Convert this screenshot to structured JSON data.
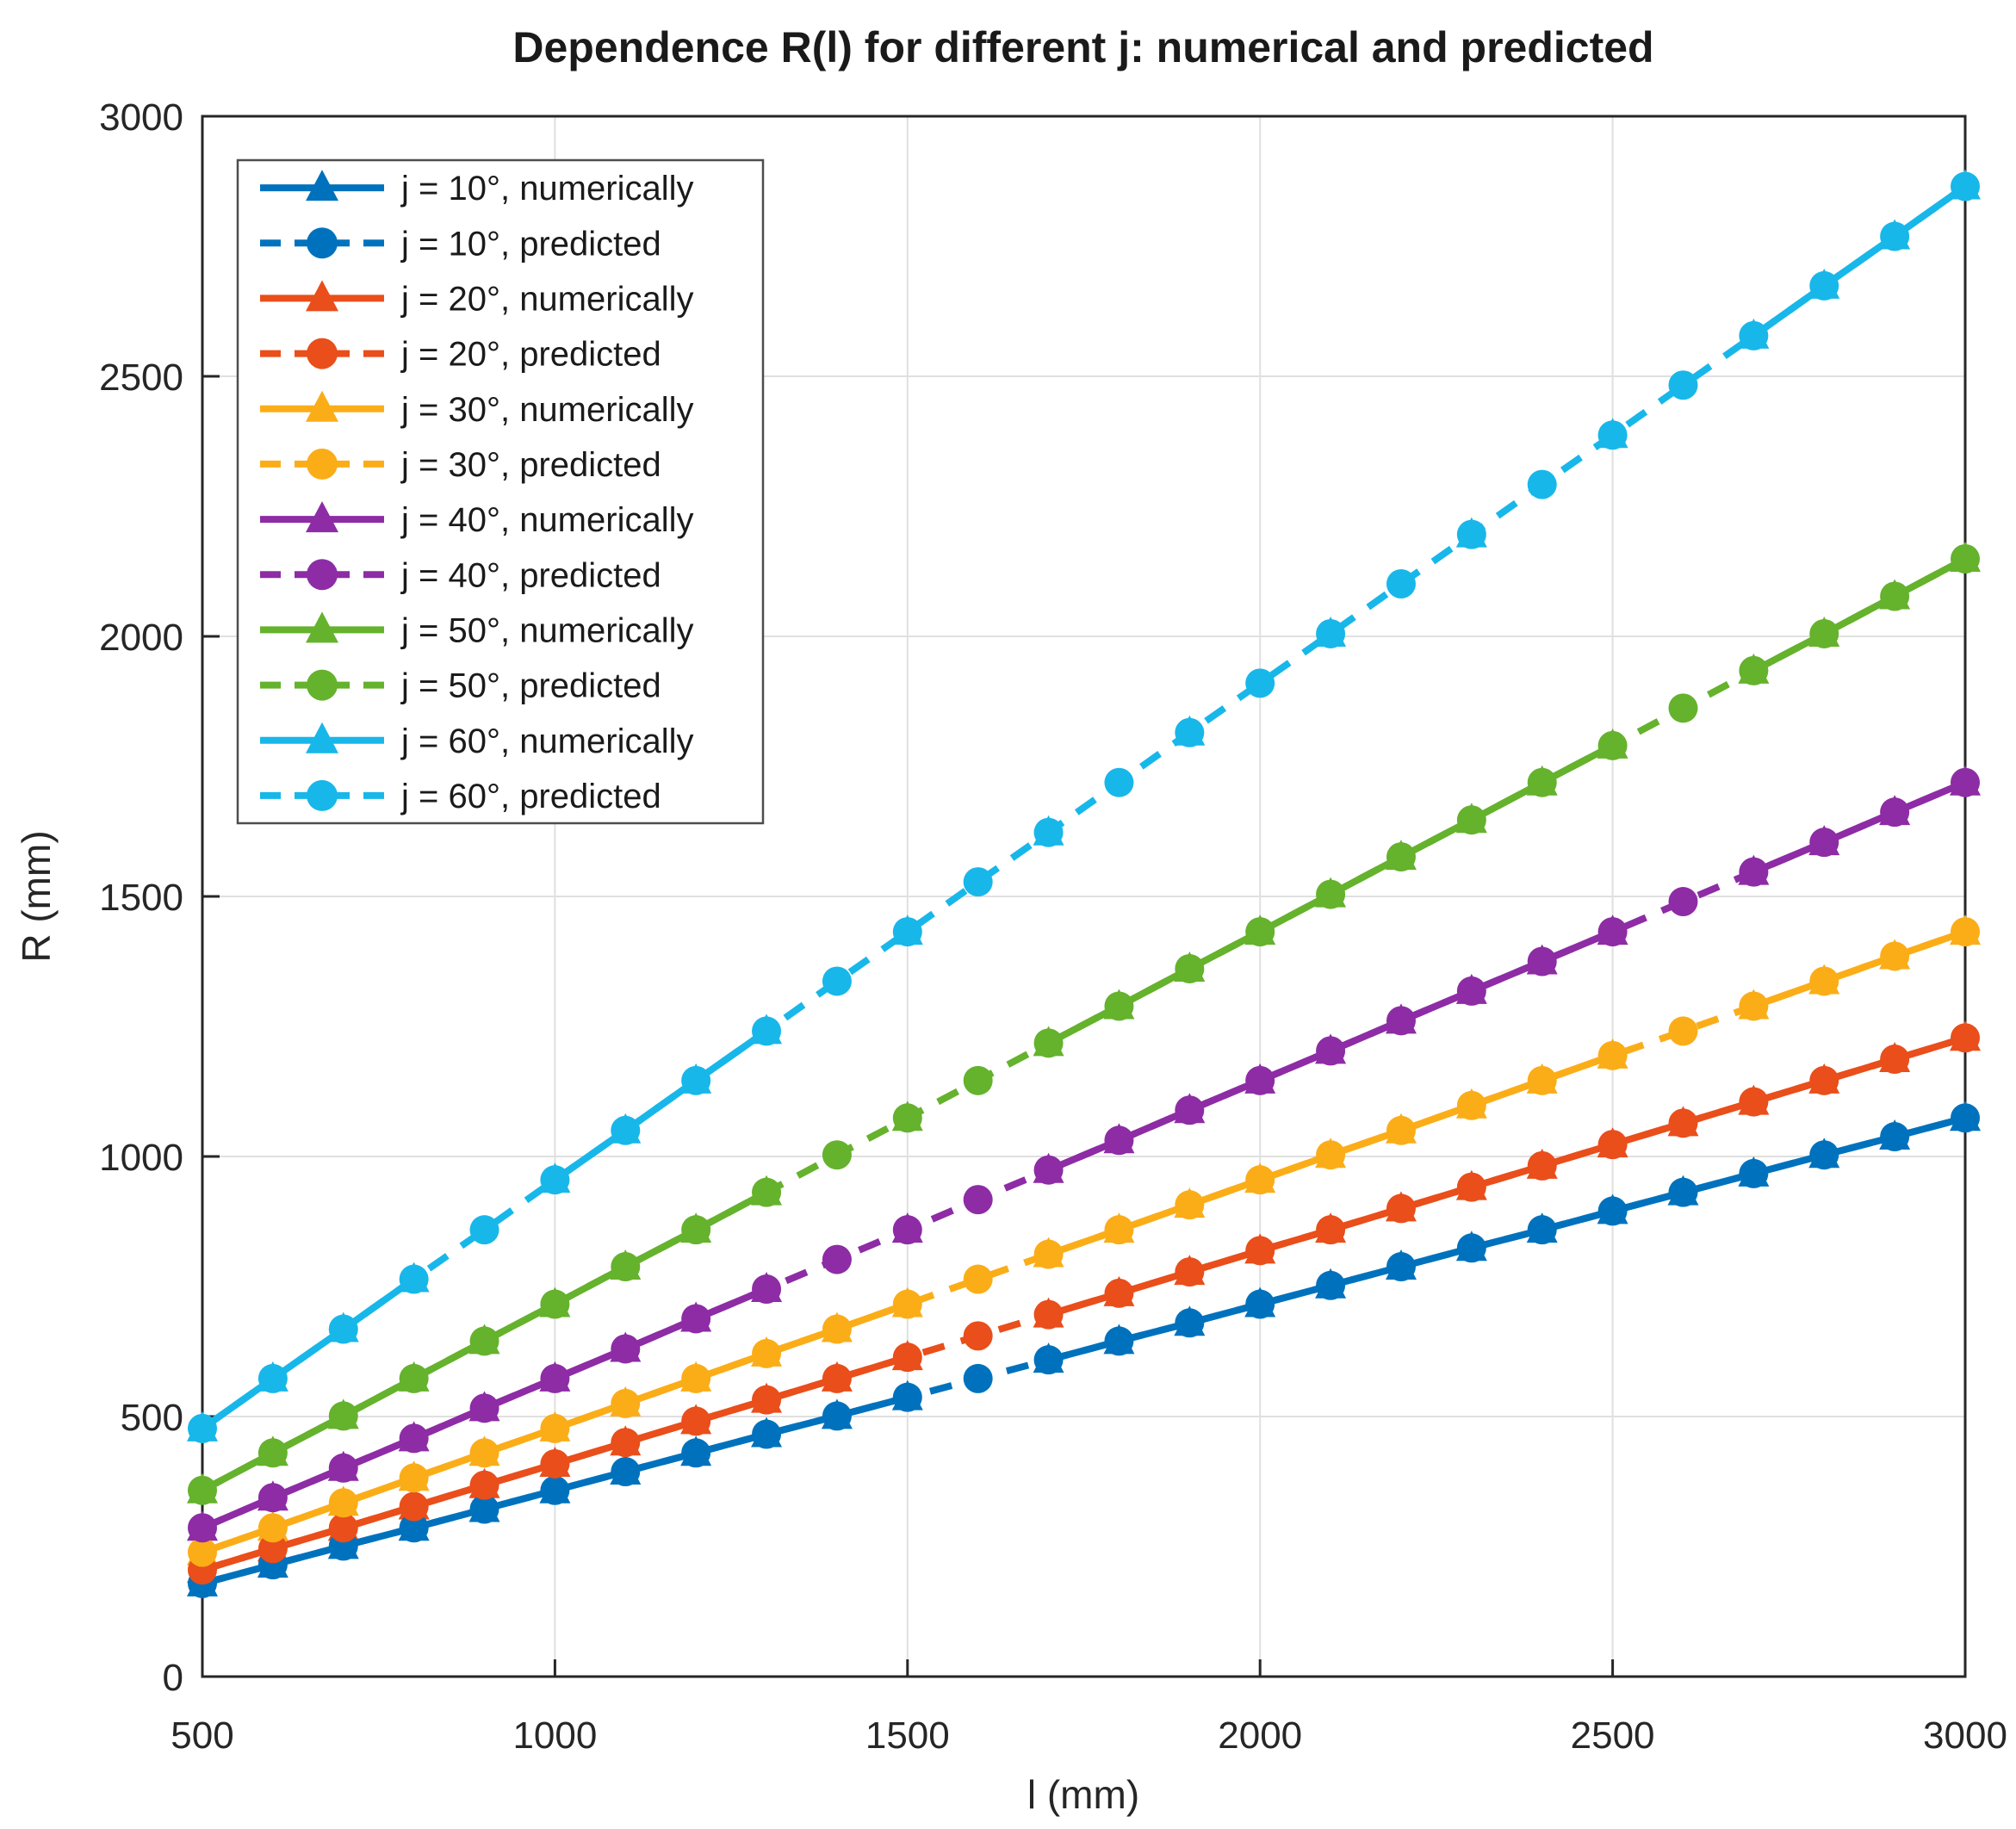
{
  "page": {
    "title": "Dependence R(l) for different j: numerical and predicted",
    "xlabel": "l (mm)",
    "ylabel": "R (mm)"
  },
  "chart_data": {
    "type": "line",
    "title": "Dependence R(l) for different j: numerical and predicted",
    "xlabel": "l (mm)",
    "ylabel": "R (mm)",
    "xlim": [
      500,
      3000
    ],
    "ylim": [
      0,
      3000
    ],
    "xticks": [
      500,
      1000,
      1500,
      2000,
      2500,
      3000
    ],
    "yticks": [
      0,
      500,
      1000,
      1500,
      2000,
      2500,
      3000
    ],
    "grid": true,
    "legend_position": "top-left",
    "axis_color": "#262626",
    "grid_color": "#e0e0e0",
    "legend_border_color": "#4d4d4d",
    "series": [
      {
        "label": "j = 10°, numerically",
        "j_deg": 10,
        "kind": "numerical",
        "color": "#0072BD",
        "line_style": "solid",
        "marker": "triangle",
        "x": [
          500,
          600,
          700,
          800,
          900,
          1000,
          1100,
          1200,
          1300,
          1400,
          1500,
          1700,
          1800,
          1900,
          2000,
          2100,
          2200,
          2300,
          2400,
          2500,
          2600,
          2700,
          2800,
          2900,
          3000
        ],
        "y": [
          179,
          215,
          251,
          286,
          322,
          358,
          394,
          430,
          466,
          501,
          537,
          609,
          645,
          680,
          716,
          752,
          788,
          824,
          859,
          895,
          931,
          967,
          1003,
          1038,
          1074
        ]
      },
      {
        "label": "j = 10°, predicted",
        "j_deg": 10,
        "kind": "predicted",
        "color": "#0072BD",
        "line_style": "dashed",
        "marker": "circle",
        "x": [
          500,
          600,
          700,
          800,
          900,
          1000,
          1100,
          1200,
          1300,
          1400,
          1500,
          1600,
          1700,
          1800,
          1900,
          2000,
          2100,
          2200,
          2300,
          2400,
          2500,
          2600,
          2700,
          2800,
          2900,
          3000
        ],
        "y": [
          179,
          215,
          251,
          286,
          322,
          358,
          394,
          430,
          466,
          501,
          537,
          573,
          609,
          645,
          680,
          716,
          752,
          788,
          824,
          859,
          895,
          931,
          967,
          1003,
          1038,
          1074
        ]
      },
      {
        "label": "j = 20°, numerically",
        "j_deg": 20,
        "kind": "numerical",
        "color": "#E94E1B",
        "line_style": "solid",
        "marker": "triangle",
        "x": [
          500,
          600,
          700,
          800,
          900,
          1000,
          1100,
          1200,
          1300,
          1400,
          1500,
          1700,
          1800,
          1900,
          2000,
          2100,
          2200,
          2300,
          2400,
          2500,
          2600,
          2700,
          2800,
          2900,
          3000
        ],
        "y": [
          205,
          246,
          286,
          327,
          368,
          409,
          450,
          491,
          532,
          573,
          614,
          696,
          737,
          778,
          819,
          859,
          900,
          941,
          982,
          1023,
          1064,
          1105,
          1146,
          1187,
          1228
        ]
      },
      {
        "label": "j = 20°, predicted",
        "j_deg": 20,
        "kind": "predicted",
        "color": "#E94E1B",
        "line_style": "dashed",
        "marker": "circle",
        "x": [
          500,
          600,
          700,
          800,
          900,
          1000,
          1100,
          1200,
          1300,
          1400,
          1500,
          1600,
          1700,
          1800,
          1900,
          2000,
          2100,
          2200,
          2300,
          2400,
          2500,
          2600,
          2700,
          2800,
          2900,
          3000
        ],
        "y": [
          205,
          246,
          286,
          327,
          368,
          409,
          450,
          491,
          532,
          573,
          614,
          655,
          696,
          737,
          778,
          819,
          859,
          900,
          941,
          982,
          1023,
          1064,
          1105,
          1146,
          1187,
          1228
        ]
      },
      {
        "label": "j = 30°, numerically",
        "j_deg": 30,
        "kind": "numerical",
        "color": "#FBAD18",
        "line_style": "solid",
        "marker": "triangle",
        "x": [
          500,
          600,
          700,
          800,
          900,
          1000,
          1100,
          1200,
          1300,
          1400,
          1500,
          1700,
          1800,
          1900,
          2000,
          2100,
          2200,
          2300,
          2400,
          2500,
          2700,
          2800,
          2900,
          3000
        ],
        "y": [
          239,
          286,
          334,
          382,
          430,
          477,
          525,
          573,
          621,
          668,
          716,
          812,
          859,
          907,
          955,
          1003,
          1050,
          1098,
          1146,
          1194,
          1289,
          1337,
          1385,
          1432
        ]
      },
      {
        "label": "j = 30°, predicted",
        "j_deg": 30,
        "kind": "predicted",
        "color": "#FBAD18",
        "line_style": "dashed",
        "marker": "circle",
        "x": [
          500,
          600,
          700,
          800,
          900,
          1000,
          1100,
          1200,
          1300,
          1400,
          1500,
          1600,
          1700,
          1800,
          1900,
          2000,
          2100,
          2200,
          2300,
          2400,
          2500,
          2600,
          2700,
          2800,
          2900,
          3000
        ],
        "y": [
          239,
          286,
          334,
          382,
          430,
          477,
          525,
          573,
          621,
          668,
          716,
          764,
          812,
          859,
          907,
          955,
          1003,
          1050,
          1098,
          1146,
          1194,
          1241,
          1289,
          1337,
          1385,
          1432
        ]
      },
      {
        "label": "j = 40°, numerically",
        "j_deg": 40,
        "kind": "numerical",
        "color": "#8D2CA5",
        "line_style": "solid",
        "marker": "triangle",
        "x": [
          500,
          600,
          700,
          800,
          900,
          1000,
          1100,
          1200,
          1300,
          1500,
          1700,
          1800,
          1900,
          2000,
          2100,
          2200,
          2300,
          2400,
          2500,
          2700,
          2800,
          2900,
          3000
        ],
        "y": [
          286,
          344,
          401,
          458,
          516,
          573,
          630,
          688,
          745,
          859,
          974,
          1031,
          1089,
          1146,
          1203,
          1261,
          1318,
          1375,
          1432,
          1547,
          1604,
          1662,
          1719
        ]
      },
      {
        "label": "j = 40°, predicted",
        "j_deg": 40,
        "kind": "predicted",
        "color": "#8D2CA5",
        "line_style": "dashed",
        "marker": "circle",
        "x": [
          500,
          600,
          700,
          800,
          900,
          1000,
          1100,
          1200,
          1300,
          1400,
          1500,
          1600,
          1700,
          1800,
          1900,
          2000,
          2100,
          2200,
          2300,
          2400,
          2500,
          2600,
          2700,
          2800,
          2900,
          3000
        ],
        "y": [
          286,
          344,
          401,
          458,
          516,
          573,
          630,
          688,
          745,
          802,
          859,
          917,
          974,
          1031,
          1089,
          1146,
          1203,
          1261,
          1318,
          1375,
          1432,
          1490,
          1547,
          1604,
          1662,
          1719
        ]
      },
      {
        "label": "j = 50°, numerically",
        "j_deg": 50,
        "kind": "numerical",
        "color": "#65B22D",
        "line_style": "solid",
        "marker": "triangle",
        "x": [
          500,
          600,
          700,
          800,
          900,
          1000,
          1100,
          1200,
          1300,
          1500,
          1700,
          1800,
          1900,
          2000,
          2100,
          2200,
          2300,
          2400,
          2500,
          2700,
          2800,
          2900,
          3000
        ],
        "y": [
          358,
          430,
          501,
          573,
          645,
          716,
          788,
          859,
          931,
          1074,
          1218,
          1289,
          1361,
          1432,
          1504,
          1576,
          1647,
          1719,
          1790,
          1934,
          2005,
          2077,
          2149
        ]
      },
      {
        "label": "j = 50°, predicted",
        "j_deg": 50,
        "kind": "predicted",
        "color": "#65B22D",
        "line_style": "dashed",
        "marker": "circle",
        "x": [
          500,
          600,
          700,
          800,
          900,
          1000,
          1100,
          1200,
          1300,
          1400,
          1500,
          1600,
          1700,
          1800,
          1900,
          2000,
          2100,
          2200,
          2300,
          2400,
          2500,
          2600,
          2700,
          2800,
          2900,
          3000
        ],
        "y": [
          358,
          430,
          501,
          573,
          645,
          716,
          788,
          859,
          931,
          1003,
          1074,
          1146,
          1218,
          1289,
          1361,
          1432,
          1504,
          1576,
          1647,
          1719,
          1790,
          1862,
          1934,
          2005,
          2077,
          2149
        ]
      },
      {
        "label": "j = 60°, numerically",
        "j_deg": 60,
        "kind": "numerical",
        "color": "#18B7EA",
        "line_style": "solid",
        "marker": "triangle",
        "x": [
          500,
          600,
          700,
          800,
          1000,
          1100,
          1200,
          1300,
          1500,
          1700,
          1900,
          2100,
          2300,
          2500,
          2700,
          2800,
          2900,
          3000
        ],
        "y": [
          477,
          573,
          668,
          764,
          955,
          1050,
          1146,
          1241,
          1432,
          1623,
          1815,
          2005,
          2196,
          2387,
          2578,
          2674,
          2769,
          2865
        ]
      },
      {
        "label": "j = 60°, predicted",
        "j_deg": 60,
        "kind": "predicted",
        "color": "#18B7EA",
        "line_style": "dashed",
        "marker": "circle",
        "x": [
          500,
          600,
          700,
          800,
          900,
          1000,
          1100,
          1200,
          1300,
          1400,
          1500,
          1600,
          1700,
          1800,
          1900,
          2000,
          2100,
          2200,
          2300,
          2400,
          2500,
          2600,
          2700,
          2800,
          2900,
          3000
        ],
        "y": [
          477,
          573,
          668,
          764,
          859,
          955,
          1050,
          1146,
          1241,
          1337,
          1432,
          1528,
          1623,
          1719,
          1815,
          1910,
          2005,
          2101,
          2196,
          2292,
          2387,
          2483,
          2578,
          2674,
          2769,
          2865
        ]
      }
    ]
  }
}
